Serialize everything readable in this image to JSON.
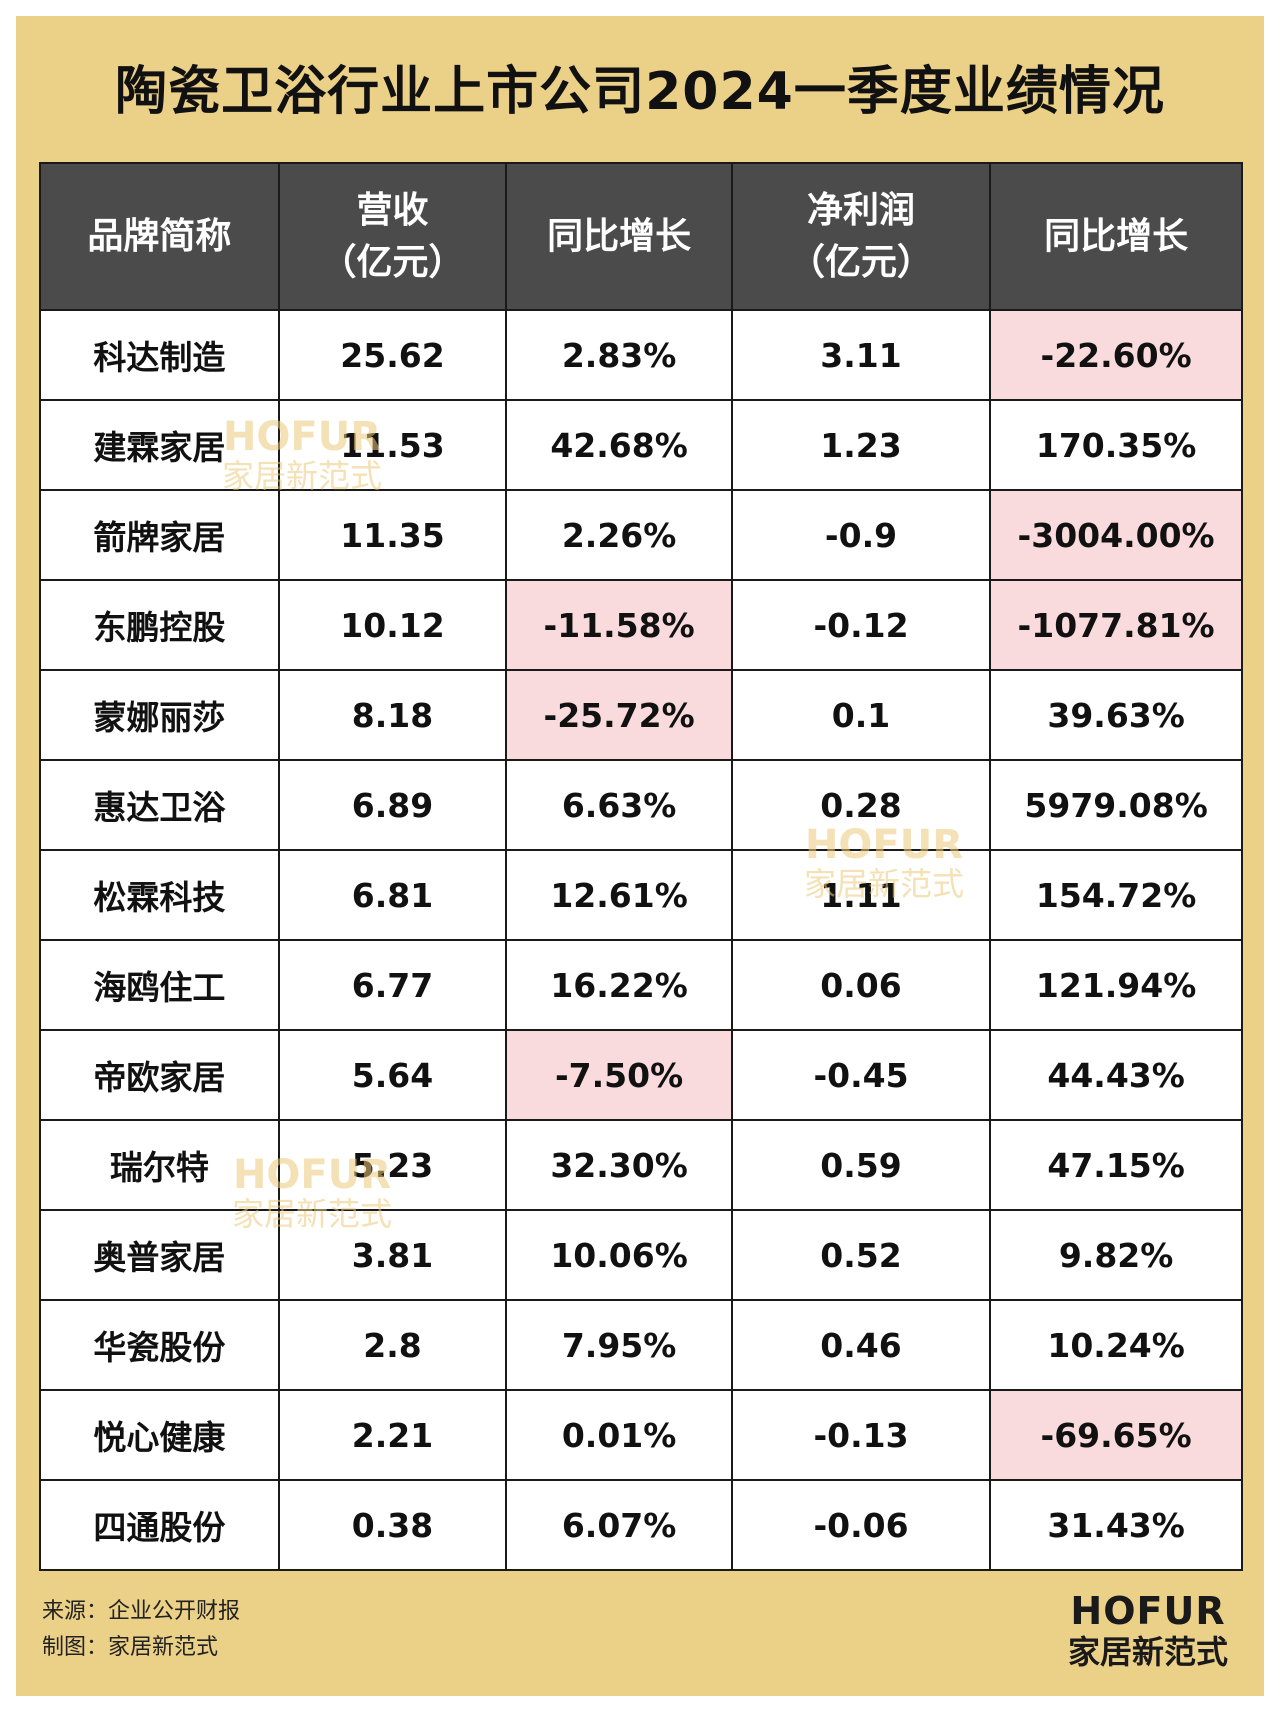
{
  "title": "陶瓷卫浴行业上市公司2024一季度业绩情况",
  "chart_data": {
    "type": "table",
    "title": "陶瓷卫浴行业上市公司2024一季度业绩情况",
    "columns": [
      {
        "key": "brand",
        "label": "品牌简称",
        "label_lines": [
          "品牌简称"
        ]
      },
      {
        "key": "revenue",
        "label": "营收（亿元）",
        "label_lines": [
          "营收",
          "（亿元）"
        ]
      },
      {
        "key": "revenue_yoy",
        "label": "同比增长",
        "label_lines": [
          "同比增长"
        ]
      },
      {
        "key": "net_profit",
        "label": "净利润（亿元）",
        "label_lines": [
          "净利润",
          "（亿元）"
        ]
      },
      {
        "key": "profit_yoy",
        "label": "同比增长",
        "label_lines": [
          "同比增长"
        ]
      }
    ],
    "rows": [
      {
        "brand": "科达制造",
        "revenue": "25.62",
        "revenue_yoy": "2.83%",
        "net_profit": "3.11",
        "profit_yoy": "-22.60%"
      },
      {
        "brand": "建霖家居",
        "revenue": "11.53",
        "revenue_yoy": "42.68%",
        "net_profit": "1.23",
        "profit_yoy": "170.35%"
      },
      {
        "brand": "箭牌家居",
        "revenue": "11.35",
        "revenue_yoy": "2.26%",
        "net_profit": "-0.9",
        "profit_yoy": "-3004.00%"
      },
      {
        "brand": "东鹏控股",
        "revenue": "10.12",
        "revenue_yoy": "-11.58%",
        "net_profit": "-0.12",
        "profit_yoy": "-1077.81%"
      },
      {
        "brand": "蒙娜丽莎",
        "revenue": "8.18",
        "revenue_yoy": "-25.72%",
        "net_profit": "0.1",
        "profit_yoy": "39.63%"
      },
      {
        "brand": "惠达卫浴",
        "revenue": "6.89",
        "revenue_yoy": "6.63%",
        "net_profit": "0.28",
        "profit_yoy": "5979.08%"
      },
      {
        "brand": "松霖科技",
        "revenue": "6.81",
        "revenue_yoy": "12.61%",
        "net_profit": "1.11",
        "profit_yoy": "154.72%"
      },
      {
        "brand": "海鸥住工",
        "revenue": "6.77",
        "revenue_yoy": "16.22%",
        "net_profit": "0.06",
        "profit_yoy": "121.94%"
      },
      {
        "brand": "帝欧家居",
        "revenue": "5.64",
        "revenue_yoy": "-7.50%",
        "net_profit": "-0.45",
        "profit_yoy": "44.43%"
      },
      {
        "brand": "瑞尔特",
        "revenue": "5.23",
        "revenue_yoy": "32.30%",
        "net_profit": "0.59",
        "profit_yoy": "47.15%"
      },
      {
        "brand": "奥普家居",
        "revenue": "3.81",
        "revenue_yoy": "10.06%",
        "net_profit": "0.52",
        "profit_yoy": "9.82%"
      },
      {
        "brand": "华瓷股份",
        "revenue": "2.8",
        "revenue_yoy": "7.95%",
        "net_profit": "0.46",
        "profit_yoy": "10.24%"
      },
      {
        "brand": "悦心健康",
        "revenue": "2.21",
        "revenue_yoy": "0.01%",
        "net_profit": "-0.13",
        "profit_yoy": "-69.65%"
      },
      {
        "brand": "四通股份",
        "revenue": "0.38",
        "revenue_yoy": "6.07%",
        "net_profit": "-0.06",
        "profit_yoy": "31.43%"
      }
    ]
  },
  "footer": {
    "source": "来源：企业公开财报",
    "maker": "制图：家居新范式"
  },
  "logo": {
    "en": "HOFUR",
    "cn": "家居新范式"
  },
  "colors": {
    "background": "#ebd087",
    "header": "#4b4b4b",
    "negative_highlight": "#f9dadd",
    "border": "#1a1a1a"
  }
}
